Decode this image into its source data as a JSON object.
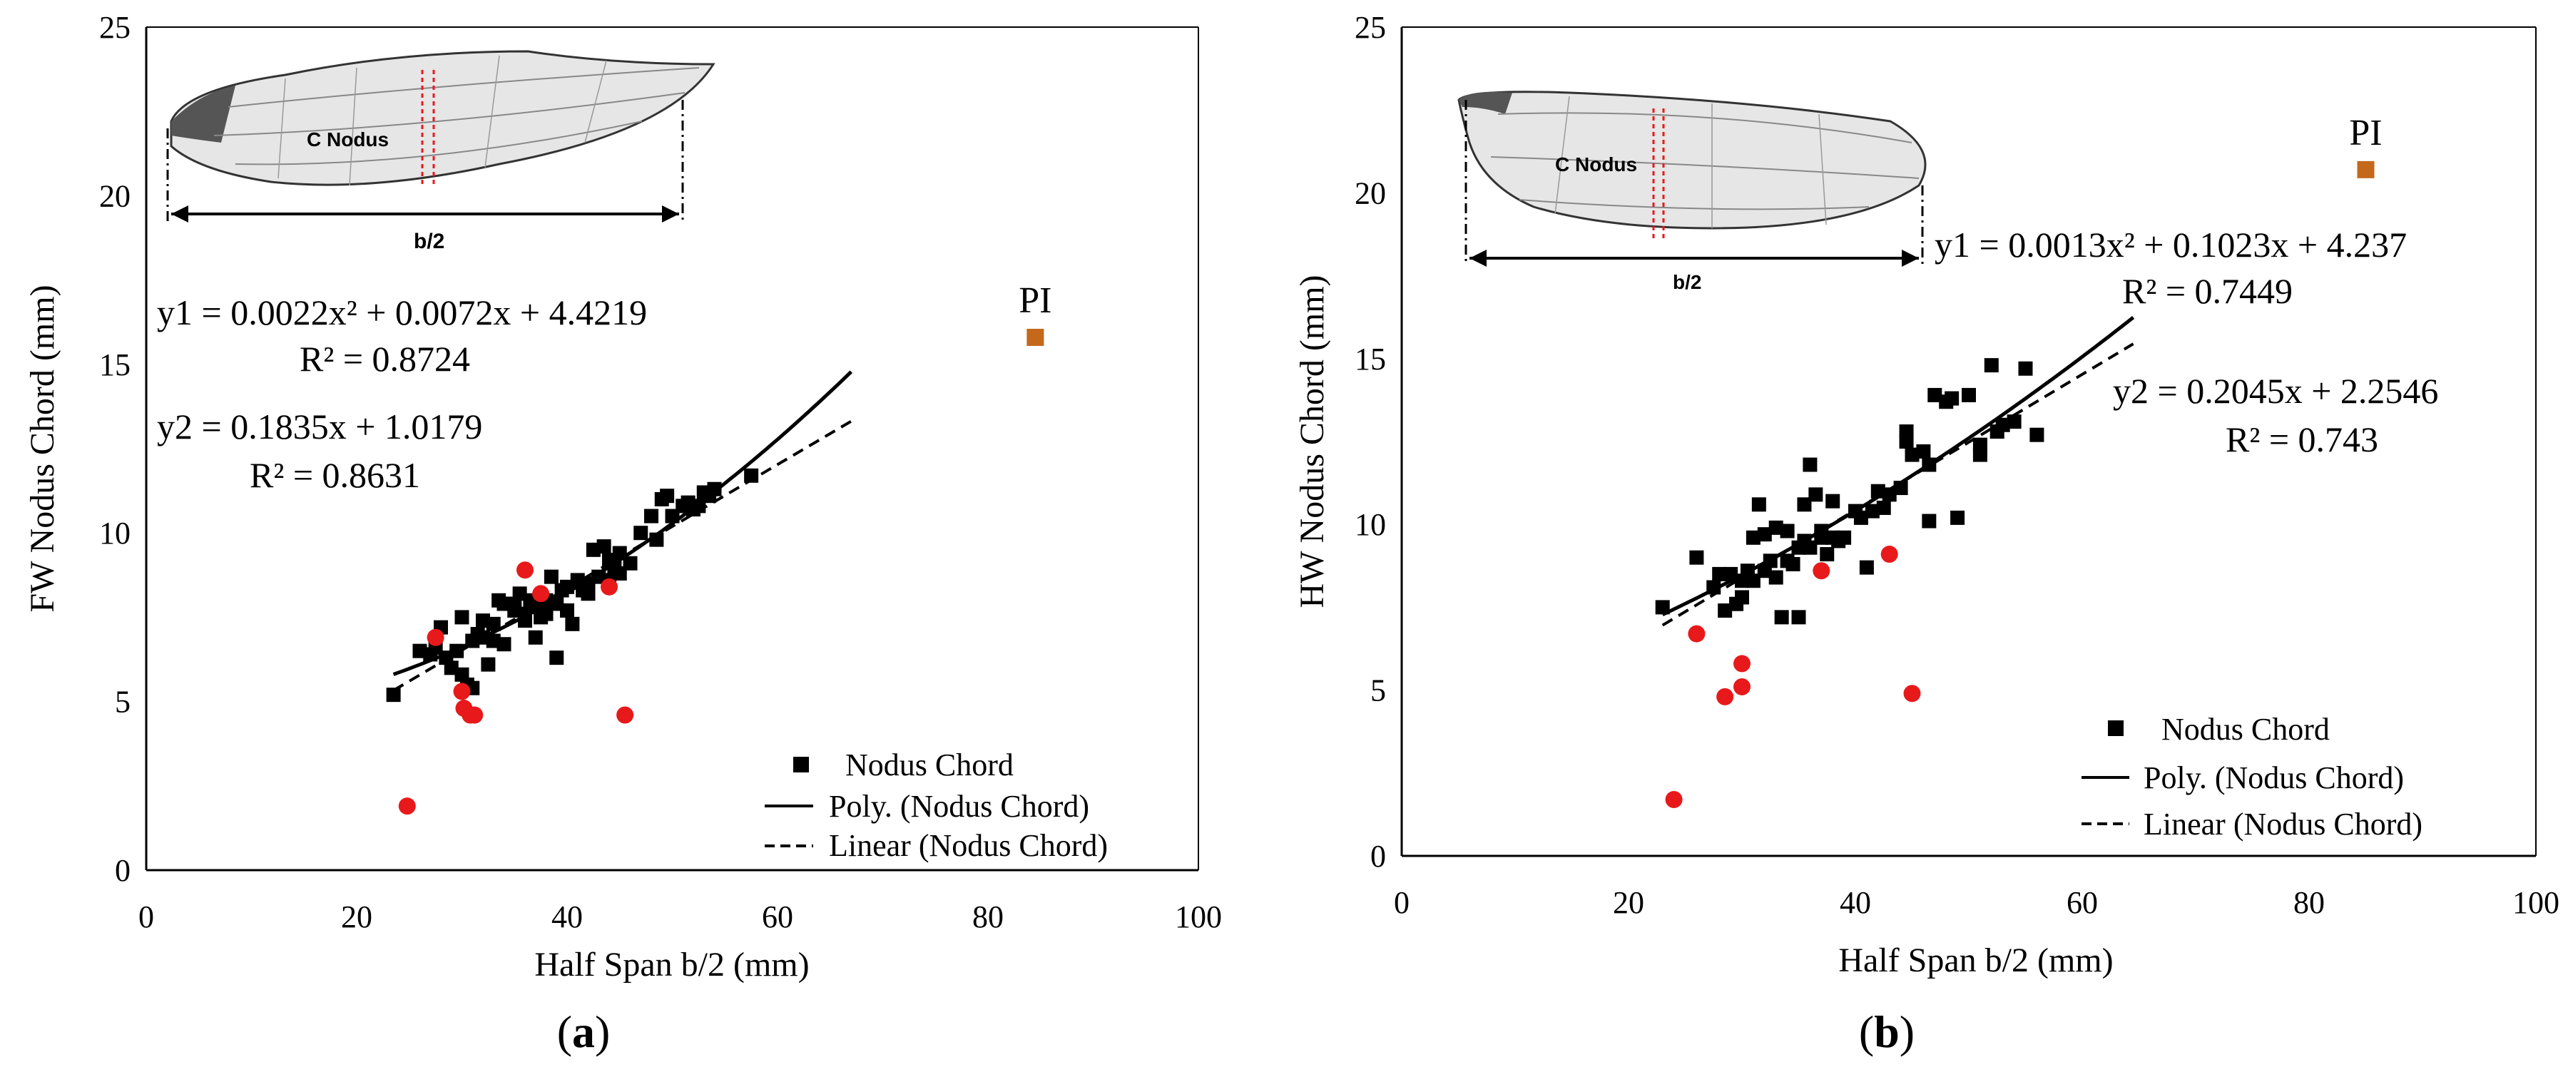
{
  "figure": {
    "panels": [
      "a",
      "b"
    ],
    "panel_labels": {
      "a": "(a)",
      "b": "(b)"
    }
  },
  "colors": {
    "nodus_square": "#000000",
    "red_point": "#e8191b",
    "pi_square": "#c4681b",
    "axis": "#000000"
  },
  "chart_data": [
    {
      "type": "scatter",
      "panel": "a",
      "xlabel": "Half Span b/2 (mm)",
      "ylabel": "FW Nodus Chord (mm)",
      "xlim": [
        0,
        100
      ],
      "ylim": [
        0,
        25
      ],
      "xticks": [
        "0",
        "20",
        "40",
        "60",
        "80",
        "100"
      ],
      "yticks": [
        "0",
        "5",
        "10",
        "15",
        "20",
        "25"
      ],
      "grid": false,
      "inset": {
        "wing": "forewing",
        "label_chord": "C Nodus",
        "label_span": "b/2"
      },
      "equations": {
        "poly": "y1 = 0.0022x² + 0.0072x + 4.4219",
        "poly_r2": "R² = 0.8724",
        "linear": "y2 = 0.1835x + 1.0179",
        "linear_r2": "R² = 0.8631"
      },
      "fits": {
        "poly": {
          "a": 0.0022,
          "b": 0.0072,
          "c": 4.4219,
          "x_range": [
            23.5,
            67
          ]
        },
        "linear": {
          "m": 0.1835,
          "c": 1.0179,
          "x_range": [
            23.5,
            67
          ]
        }
      },
      "legend": [
        "Nodus Chord",
        "Poly. (Nodus Chord)",
        "Linear (Nodus Chord)"
      ],
      "legend_position": "bottom-right",
      "series": [
        {
          "name": "Nodus Chord",
          "marker": "square",
          "points": [
            [
              23.5,
              5.2
            ],
            [
              26,
              6.5
            ],
            [
              27,
              6.4
            ],
            [
              27.5,
              6.6
            ],
            [
              28,
              7.2
            ],
            [
              28.5,
              6.3
            ],
            [
              29,
              6.0
            ],
            [
              29.5,
              6.5
            ],
            [
              30,
              7.5
            ],
            [
              30,
              5.8
            ],
            [
              30.5,
              5.5
            ],
            [
              31,
              6.8
            ],
            [
              31,
              5.4
            ],
            [
              31.5,
              7.0
            ],
            [
              32,
              6.9
            ],
            [
              32,
              7.4
            ],
            [
              32.5,
              6.1
            ],
            [
              33,
              7.3
            ],
            [
              33,
              6.8
            ],
            [
              33.5,
              8.0
            ],
            [
              34,
              7.9
            ],
            [
              34,
              6.7
            ],
            [
              35,
              7.7
            ],
            [
              35,
              7.9
            ],
            [
              35.5,
              8.2
            ],
            [
              36,
              7.6
            ],
            [
              36,
              7.4
            ],
            [
              36.5,
              8.0
            ],
            [
              37,
              7.8
            ],
            [
              37,
              6.9
            ],
            [
              37.5,
              7.5
            ],
            [
              38,
              8.0
            ],
            [
              38,
              7.6
            ],
            [
              38.5,
              8.7
            ],
            [
              39,
              6.3
            ],
            [
              39,
              7.9
            ],
            [
              39.5,
              8.3
            ],
            [
              40,
              8.4
            ],
            [
              40,
              7.7
            ],
            [
              40.5,
              7.3
            ],
            [
              41,
              8.6
            ],
            [
              41.5,
              8.3
            ],
            [
              42,
              8.2
            ],
            [
              42,
              8.5
            ],
            [
              42.5,
              9.5
            ],
            [
              43,
              8.7
            ],
            [
              43.5,
              9.6
            ],
            [
              44,
              9.2
            ],
            [
              44,
              8.6
            ],
            [
              44.5,
              9.0
            ],
            [
              45,
              9.4
            ],
            [
              45,
              8.8
            ],
            [
              46,
              9.1
            ],
            [
              47,
              10.0
            ],
            [
              48,
              10.5
            ],
            [
              48.5,
              9.8
            ],
            [
              49,
              11.0
            ],
            [
              49.5,
              11.1
            ],
            [
              50,
              10.5
            ],
            [
              51,
              10.8
            ],
            [
              51.5,
              10.9
            ],
            [
              52,
              10.7
            ],
            [
              52.5,
              10.8
            ],
            [
              53,
              11.2
            ],
            [
              53.5,
              11.1
            ],
            [
              54,
              11.3
            ],
            [
              57.5,
              11.7
            ]
          ]
        },
        {
          "name": "Red points",
          "marker": "circle",
          "points": [
            [
              27.5,
              6.9
            ],
            [
              30,
              5.3
            ],
            [
              30.2,
              4.8
            ],
            [
              30.8,
              4.6
            ],
            [
              31.2,
              4.6
            ],
            [
              36,
              8.9
            ],
            [
              37.5,
              8.2
            ],
            [
              44,
              8.4
            ],
            [
              45.5,
              4.6
            ],
            [
              24.8,
              1.9
            ]
          ]
        },
        {
          "name": "PI",
          "marker": "square",
          "label": "PI",
          "points": [
            [
              84.5,
              15.8
            ]
          ]
        }
      ]
    },
    {
      "type": "scatter",
      "panel": "b",
      "xlabel": "Half Span b/2 (mm)",
      "ylabel": "HW Nodus Chord (mm)",
      "xlim": [
        0,
        100
      ],
      "ylim": [
        0,
        25
      ],
      "xticks": [
        "0",
        "20",
        "40",
        "60",
        "80",
        "100"
      ],
      "yticks": [
        "0",
        "5",
        "10",
        "15",
        "20",
        "25"
      ],
      "grid": false,
      "inset": {
        "wing": "hindwing",
        "label_chord": "C Nodus",
        "label_span": "b/2"
      },
      "equations": {
        "poly": "y1 = 0.0013x² + 0.1023x + 4.237",
        "poly_r2": "R² = 0.7449",
        "linear": "y2 = 0.2045x + 2.2546",
        "linear_r2": "R² = 0.743"
      },
      "fits": {
        "poly": {
          "a": 0.0013,
          "b": 0.1023,
          "c": 4.237,
          "x_range": [
            23,
            64.5
          ]
        },
        "linear": {
          "m": 0.2045,
          "c": 2.2546,
          "x_range": [
            23,
            64.5
          ]
        }
      },
      "legend": [
        "Nodus Chord",
        "Poly. (Nodus Chord)",
        "Linear (Nodus Chord)"
      ],
      "legend_position": "bottom-right",
      "series": [
        {
          "name": "Nodus Chord",
          "marker": "square",
          "points": [
            [
              23,
              7.5
            ],
            [
              26,
              9.0
            ],
            [
              27.5,
              8.1
            ],
            [
              28,
              8.5
            ],
            [
              28.5,
              7.4
            ],
            [
              29,
              8.5
            ],
            [
              29.5,
              7.6
            ],
            [
              30,
              7.8
            ],
            [
              30,
              8.3
            ],
            [
              30.5,
              8.6
            ],
            [
              31,
              9.6
            ],
            [
              31,
              8.3
            ],
            [
              31.5,
              10.6
            ],
            [
              32,
              9.7
            ],
            [
              32,
              8.6
            ],
            [
              32.5,
              8.9
            ],
            [
              33,
              8.4
            ],
            [
              33,
              9.9
            ],
            [
              33.5,
              7.2
            ],
            [
              34,
              8.9
            ],
            [
              34,
              9.8
            ],
            [
              34.5,
              8.8
            ],
            [
              35,
              9.3
            ],
            [
              35,
              7.2
            ],
            [
              35.5,
              10.6
            ],
            [
              35.5,
              9.5
            ],
            [
              36,
              11.8
            ],
            [
              36,
              9.3
            ],
            [
              36.5,
              10.9
            ],
            [
              37,
              9.6
            ],
            [
              37,
              9.8
            ],
            [
              37.5,
              9.1
            ],
            [
              38,
              10.7
            ],
            [
              38,
              9.6
            ],
            [
              38.5,
              9.5
            ],
            [
              39,
              9.6
            ],
            [
              40,
              10.4
            ],
            [
              40.5,
              10.2
            ],
            [
              41,
              8.7
            ],
            [
              41.5,
              10.4
            ],
            [
              42,
              11.0
            ],
            [
              42.5,
              10.5
            ],
            [
              43,
              10.9
            ],
            [
              44,
              11.1
            ],
            [
              44.5,
              12.5
            ],
            [
              44.5,
              12.8
            ],
            [
              45,
              12.1
            ],
            [
              46,
              12.2
            ],
            [
              46.5,
              11.8
            ],
            [
              47,
              13.9
            ],
            [
              46.5,
              10.1
            ],
            [
              48,
              13.7
            ],
            [
              48.5,
              13.8
            ],
            [
              49,
              10.2
            ],
            [
              50,
              13.9
            ],
            [
              51,
              12.4
            ],
            [
              51,
              12.1
            ],
            [
              52,
              14.8
            ],
            [
              52.5,
              12.8
            ],
            [
              53,
              13.0
            ],
            [
              54,
              13.1
            ],
            [
              55,
              14.7
            ],
            [
              56,
              12.7
            ]
          ]
        },
        {
          "name": "Red points",
          "marker": "circle",
          "points": [
            [
              26,
              6.7
            ],
            [
              30,
              5.8
            ],
            [
              28.5,
              4.8
            ],
            [
              30,
              5.1
            ],
            [
              37,
              8.6
            ],
            [
              43,
              9.1
            ],
            [
              45,
              4.9
            ],
            [
              24,
              1.7
            ]
          ]
        },
        {
          "name": "PI",
          "marker": "square",
          "label": "PI",
          "points": [
            [
              85,
              20.7
            ]
          ]
        }
      ]
    }
  ]
}
